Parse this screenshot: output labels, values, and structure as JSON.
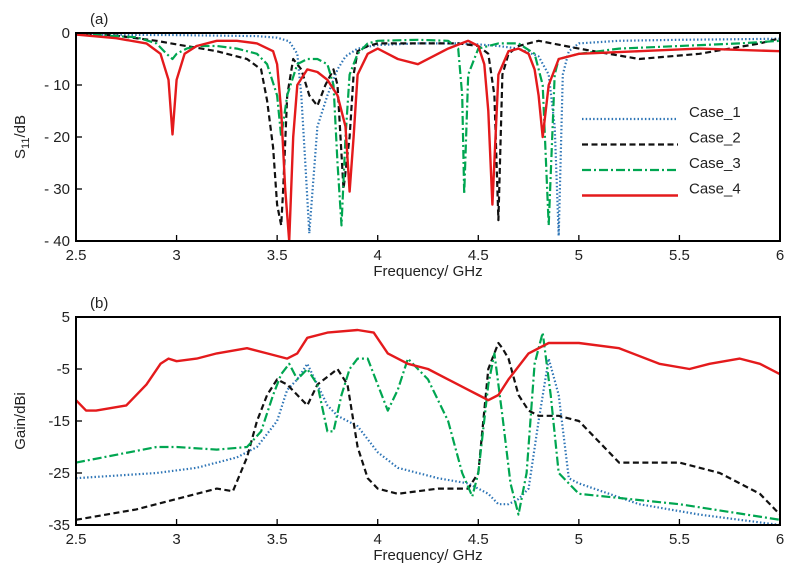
{
  "chart_data": [
    {
      "type": "line",
      "panel_label": "(a)",
      "xlabel": "Frequency/ GHz",
      "ylabel_base": "S",
      "ylabel_sub": "11",
      "ylabel_rest": "/dB",
      "xlim": [
        2.5,
        6
      ],
      "ylim": [
        -40,
        0
      ],
      "xticks": [
        "2.5",
        "3",
        "3.5",
        "4",
        "4.5",
        "5",
        "5.5",
        "6"
      ],
      "yticks": [
        "0",
        "- 10",
        "- 20",
        "- 30",
        "- 40"
      ],
      "ytick_values": [
        0,
        -10,
        -20,
        -30,
        -40
      ],
      "legend": "right",
      "series": [
        {
          "name": "Case_1",
          "color": "#2e75b6",
          "dash": "dotted",
          "x": [
            2.5,
            3.0,
            3.4,
            3.5,
            3.56,
            3.6,
            3.62,
            3.64,
            3.66,
            3.7,
            3.75,
            3.8,
            3.84,
            3.9,
            4.0,
            4.2,
            4.4,
            4.5,
            4.6,
            4.7,
            4.8,
            4.85,
            4.88,
            4.9,
            4.92,
            4.95,
            5.0,
            5.2,
            5.5,
            5.8,
            6.0
          ],
          "y": [
            -0.3,
            -0.4,
            -0.6,
            -0.9,
            -1.6,
            -4,
            -12,
            -25,
            -38.5,
            -18,
            -12,
            -7,
            -4.5,
            -3,
            -2.3,
            -2,
            -2,
            -2.2,
            -2.5,
            -3,
            -4.5,
            -8,
            -18,
            -39,
            -8,
            -3.5,
            -2,
            -1.5,
            -1.3,
            -1.2,
            -1.1
          ]
        },
        {
          "name": "Case_2",
          "color": "#111111",
          "dash": "dashed",
          "x": [
            2.5,
            2.7,
            2.9,
            3.0,
            3.2,
            3.35,
            3.42,
            3.45,
            3.48,
            3.5,
            3.52,
            3.53,
            3.55,
            3.58,
            3.62,
            3.66,
            3.7,
            3.74,
            3.78,
            3.8,
            3.83,
            3.86,
            3.88,
            3.9,
            3.95,
            4.0,
            4.2,
            4.4,
            4.5,
            4.55,
            4.58,
            4.6,
            4.62,
            4.65,
            4.7,
            4.8,
            5.0,
            5.3,
            5.6,
            5.9,
            6.0
          ],
          "y": [
            0,
            -0.5,
            -1.5,
            -2.2,
            -3.5,
            -5,
            -7,
            -13,
            -22,
            -33,
            -37,
            -30,
            -12,
            -5,
            -7,
            -12,
            -14,
            -10,
            -7,
            -10,
            -30,
            -20,
            -8,
            -3.5,
            -2.5,
            -2,
            -2,
            -2,
            -2.5,
            -4,
            -12,
            -36,
            -8,
            -4,
            -2.5,
            -1.5,
            -3,
            -5,
            -4,
            -2,
            -1
          ]
        },
        {
          "name": "Case_3",
          "color": "#00a651",
          "dash": "dashdot",
          "x": [
            2.5,
            2.8,
            2.9,
            2.95,
            2.98,
            3.0,
            3.05,
            3.1,
            3.2,
            3.3,
            3.4,
            3.45,
            3.5,
            3.52,
            3.55,
            3.6,
            3.65,
            3.7,
            3.75,
            3.78,
            3.8,
            3.82,
            3.84,
            3.86,
            3.9,
            3.95,
            4.0,
            4.2,
            4.35,
            4.4,
            4.42,
            4.43,
            4.45,
            4.5,
            4.6,
            4.7,
            4.78,
            4.82,
            4.85,
            4.88,
            4.9,
            5.0,
            5.2,
            5.5,
            5.8,
            6.0
          ],
          "y": [
            -0.2,
            -0.8,
            -2,
            -4,
            -5,
            -4,
            -3,
            -2.5,
            -2.5,
            -3,
            -4,
            -6,
            -12,
            -20,
            -12,
            -6,
            -5,
            -5,
            -6,
            -10,
            -25,
            -37,
            -20,
            -8,
            -4,
            -2,
            -1.5,
            -1.3,
            -1.5,
            -3,
            -12,
            -31,
            -8,
            -3,
            -2,
            -2,
            -4,
            -10,
            -37,
            -8,
            -5,
            -4,
            -3,
            -2.5,
            -2,
            -1.5
          ]
        },
        {
          "name": "Case_4",
          "color": "#e41a1c",
          "dash": "solid",
          "x": [
            2.5,
            2.7,
            2.85,
            2.92,
            2.96,
            2.98,
            3.0,
            3.04,
            3.1,
            3.2,
            3.3,
            3.4,
            3.48,
            3.5,
            3.52,
            3.54,
            3.56,
            3.58,
            3.6,
            3.65,
            3.7,
            3.75,
            3.8,
            3.84,
            3.86,
            3.88,
            3.9,
            3.95,
            4.0,
            4.1,
            4.2,
            4.35,
            4.45,
            4.5,
            4.53,
            4.55,
            4.57,
            4.6,
            4.65,
            4.7,
            4.75,
            4.78,
            4.8,
            4.82,
            4.85,
            4.9,
            5.0,
            5.3,
            5.6,
            6.0
          ],
          "y": [
            -0.3,
            -1,
            -2,
            -4,
            -9,
            -19.5,
            -9,
            -4,
            -2.5,
            -1.5,
            -1.5,
            -2,
            -3.5,
            -6,
            -15,
            -30,
            -40,
            -20,
            -10,
            -7,
            -7.5,
            -9,
            -12,
            -18,
            -30.5,
            -20,
            -8,
            -4,
            -3,
            -5,
            -6,
            -3,
            -1.5,
            -2.5,
            -6,
            -15,
            -33,
            -8,
            -3.5,
            -3,
            -4,
            -7,
            -12,
            -20,
            -10,
            -5,
            -4,
            -3.5,
            -3,
            -3.5
          ]
        }
      ]
    },
    {
      "type": "line",
      "panel_label": "(b)",
      "xlabel": "Frequency/ GHz",
      "ylabel": "Gain/dBi",
      "xlim": [
        2.5,
        6
      ],
      "ylim": [
        -35,
        5
      ],
      "xticks": [
        "2.5",
        "3",
        "3.5",
        "4",
        "4.5",
        "5",
        "5.5",
        "6"
      ],
      "yticks": [
        "5",
        "-5",
        "-15",
        "-25",
        "-35"
      ],
      "ytick_values": [
        5,
        -5,
        -15,
        -25,
        -35
      ],
      "series": [
        {
          "name": "Case_1",
          "color": "#2e75b6",
          "dash": "dotted",
          "x": [
            2.5,
            2.7,
            2.9,
            3.1,
            3.3,
            3.4,
            3.5,
            3.55,
            3.6,
            3.65,
            3.7,
            3.75,
            3.8,
            3.9,
            4.0,
            4.1,
            4.3,
            4.45,
            4.55,
            4.6,
            4.65,
            4.7,
            4.75,
            4.8,
            4.85,
            4.9,
            4.95,
            5.0,
            5.3,
            5.6,
            6.0
          ],
          "y": [
            -26,
            -25.5,
            -25,
            -24,
            -22,
            -20,
            -15,
            -9,
            -7,
            -4,
            -8,
            -12,
            -14,
            -16,
            -21,
            -24,
            -26,
            -27,
            -29,
            -31,
            -31,
            -30,
            -28,
            -15,
            -3,
            -10,
            -26,
            -27,
            -31,
            -33,
            -35
          ]
        },
        {
          "name": "Case_2",
          "color": "#111111",
          "dash": "dashed",
          "x": [
            2.5,
            2.8,
            3.0,
            3.2,
            3.28,
            3.35,
            3.4,
            3.45,
            3.5,
            3.55,
            3.6,
            3.65,
            3.7,
            3.8,
            3.85,
            3.9,
            3.95,
            4.0,
            4.1,
            4.3,
            4.45,
            4.5,
            4.55,
            4.6,
            4.62,
            4.65,
            4.7,
            4.75,
            4.8,
            4.9,
            5.0,
            5.2,
            5.5,
            5.7,
            5.9,
            6.0
          ],
          "y": [
            -34,
            -32,
            -30,
            -28,
            -28.5,
            -22,
            -15,
            -10,
            -7,
            -8,
            -10,
            -12,
            -8,
            -5,
            -8,
            -20,
            -26,
            -28,
            -29,
            -28,
            -28,
            -25,
            -5,
            0,
            -1,
            -3,
            -10,
            -13,
            -14,
            -14,
            -15,
            -23,
            -23,
            -25,
            -29,
            -33
          ]
        },
        {
          "name": "Case_3",
          "color": "#00a651",
          "dash": "dashdot",
          "x": [
            2.5,
            2.7,
            2.9,
            3.0,
            3.2,
            3.35,
            3.42,
            3.48,
            3.52,
            3.56,
            3.6,
            3.65,
            3.7,
            3.75,
            3.78,
            3.82,
            3.86,
            3.9,
            3.95,
            4.0,
            4.05,
            4.1,
            4.15,
            4.25,
            4.35,
            4.42,
            4.47,
            4.5,
            4.55,
            4.58,
            4.62,
            4.66,
            4.7,
            4.74,
            4.78,
            4.82,
            4.86,
            4.9,
            5.0,
            5.5,
            6.0
          ],
          "y": [
            -23,
            -21.5,
            -20,
            -20,
            -20.5,
            -20,
            -17,
            -10,
            -6,
            -4,
            -7,
            -5,
            -8,
            -17,
            -17,
            -10,
            -5,
            -3,
            -3,
            -8,
            -13,
            -9,
            -3,
            -7,
            -15,
            -25,
            -29.5,
            -25,
            -8,
            -2,
            -14,
            -27,
            -33,
            -25,
            -4,
            2,
            -10,
            -25,
            -29,
            -31,
            -34
          ]
        },
        {
          "name": "Case_4",
          "color": "#e41a1c",
          "dash": "solid",
          "x": [
            2.5,
            2.55,
            2.6,
            2.75,
            2.85,
            2.92,
            2.96,
            3.0,
            3.1,
            3.2,
            3.35,
            3.45,
            3.55,
            3.6,
            3.65,
            3.75,
            3.9,
            3.98,
            4.05,
            4.15,
            4.25,
            4.35,
            4.45,
            4.5,
            4.55,
            4.6,
            4.65,
            4.75,
            4.85,
            5.0,
            5.2,
            5.4,
            5.55,
            5.65,
            5.8,
            5.9,
            6.0
          ],
          "y": [
            -11,
            -13,
            -13,
            -12,
            -8,
            -4,
            -3,
            -3.5,
            -3,
            -2,
            -1,
            -2,
            -3,
            -2,
            1,
            2,
            2.5,
            2,
            -2,
            -4,
            -5,
            -7,
            -9,
            -10,
            -11,
            -10,
            -7,
            -2,
            0,
            0,
            -1,
            -4,
            -5,
            -4,
            -3,
            -4,
            -6
          ]
        }
      ]
    }
  ]
}
